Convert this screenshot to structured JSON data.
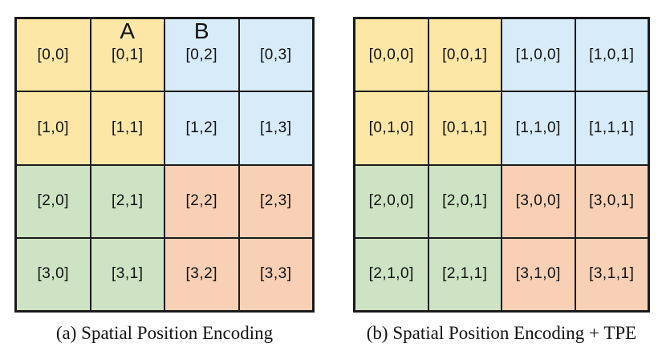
{
  "figure": {
    "colors": {
      "yellow": "#FCE7A6",
      "blue": "#D8EBF9",
      "green": "#CDE3C3",
      "orange": "#F8D0B5",
      "border": "#1b1b1b"
    },
    "panels": [
      {
        "id": "a",
        "caption": "(a) Spatial Position Encoding",
        "rows": [
          [
            {
              "label": "[0,0]",
              "color": "yellow"
            },
            {
              "label": "[0,1]",
              "color": "yellow",
              "marker": "A"
            },
            {
              "label": "[0,2]",
              "color": "blue",
              "marker": "B"
            },
            {
              "label": "[0,3]",
              "color": "blue"
            }
          ],
          [
            {
              "label": "[1,0]",
              "color": "yellow"
            },
            {
              "label": "[1,1]",
              "color": "yellow"
            },
            {
              "label": "[1,2]",
              "color": "blue"
            },
            {
              "label": "[1,3]",
              "color": "blue"
            }
          ],
          [
            {
              "label": "[2,0]",
              "color": "green"
            },
            {
              "label": "[2,1]",
              "color": "green"
            },
            {
              "label": "[2,2]",
              "color": "orange"
            },
            {
              "label": "[2,3]",
              "color": "orange"
            }
          ],
          [
            {
              "label": "[3,0]",
              "color": "green"
            },
            {
              "label": "[3,1]",
              "color": "green"
            },
            {
              "label": "[3,2]",
              "color": "orange"
            },
            {
              "label": "[3,3]",
              "color": "orange"
            }
          ]
        ]
      },
      {
        "id": "b",
        "caption": "(b) Spatial Position Encoding + TPE",
        "rows": [
          [
            {
              "label": "[0,0,0]",
              "color": "yellow"
            },
            {
              "label": "[0,0,1]",
              "color": "yellow"
            },
            {
              "label": "[1,0,0]",
              "color": "blue"
            },
            {
              "label": "[1,0,1]",
              "color": "blue"
            }
          ],
          [
            {
              "label": "[0,1,0]",
              "color": "yellow"
            },
            {
              "label": "[0,1,1]",
              "color": "yellow"
            },
            {
              "label": "[1,1,0]",
              "color": "blue"
            },
            {
              "label": "[1,1,1]",
              "color": "blue"
            }
          ],
          [
            {
              "label": "[2,0,0]",
              "color": "green"
            },
            {
              "label": "[2,0,1]",
              "color": "green"
            },
            {
              "label": "[3,0,0]",
              "color": "orange"
            },
            {
              "label": "[3,0,1]",
              "color": "orange"
            }
          ],
          [
            {
              "label": "[2,1,0]",
              "color": "green"
            },
            {
              "label": "[2,1,1]",
              "color": "green"
            },
            {
              "label": "[3,1,0]",
              "color": "orange"
            },
            {
              "label": "[3,1,1]",
              "color": "orange"
            }
          ]
        ]
      }
    ]
  }
}
